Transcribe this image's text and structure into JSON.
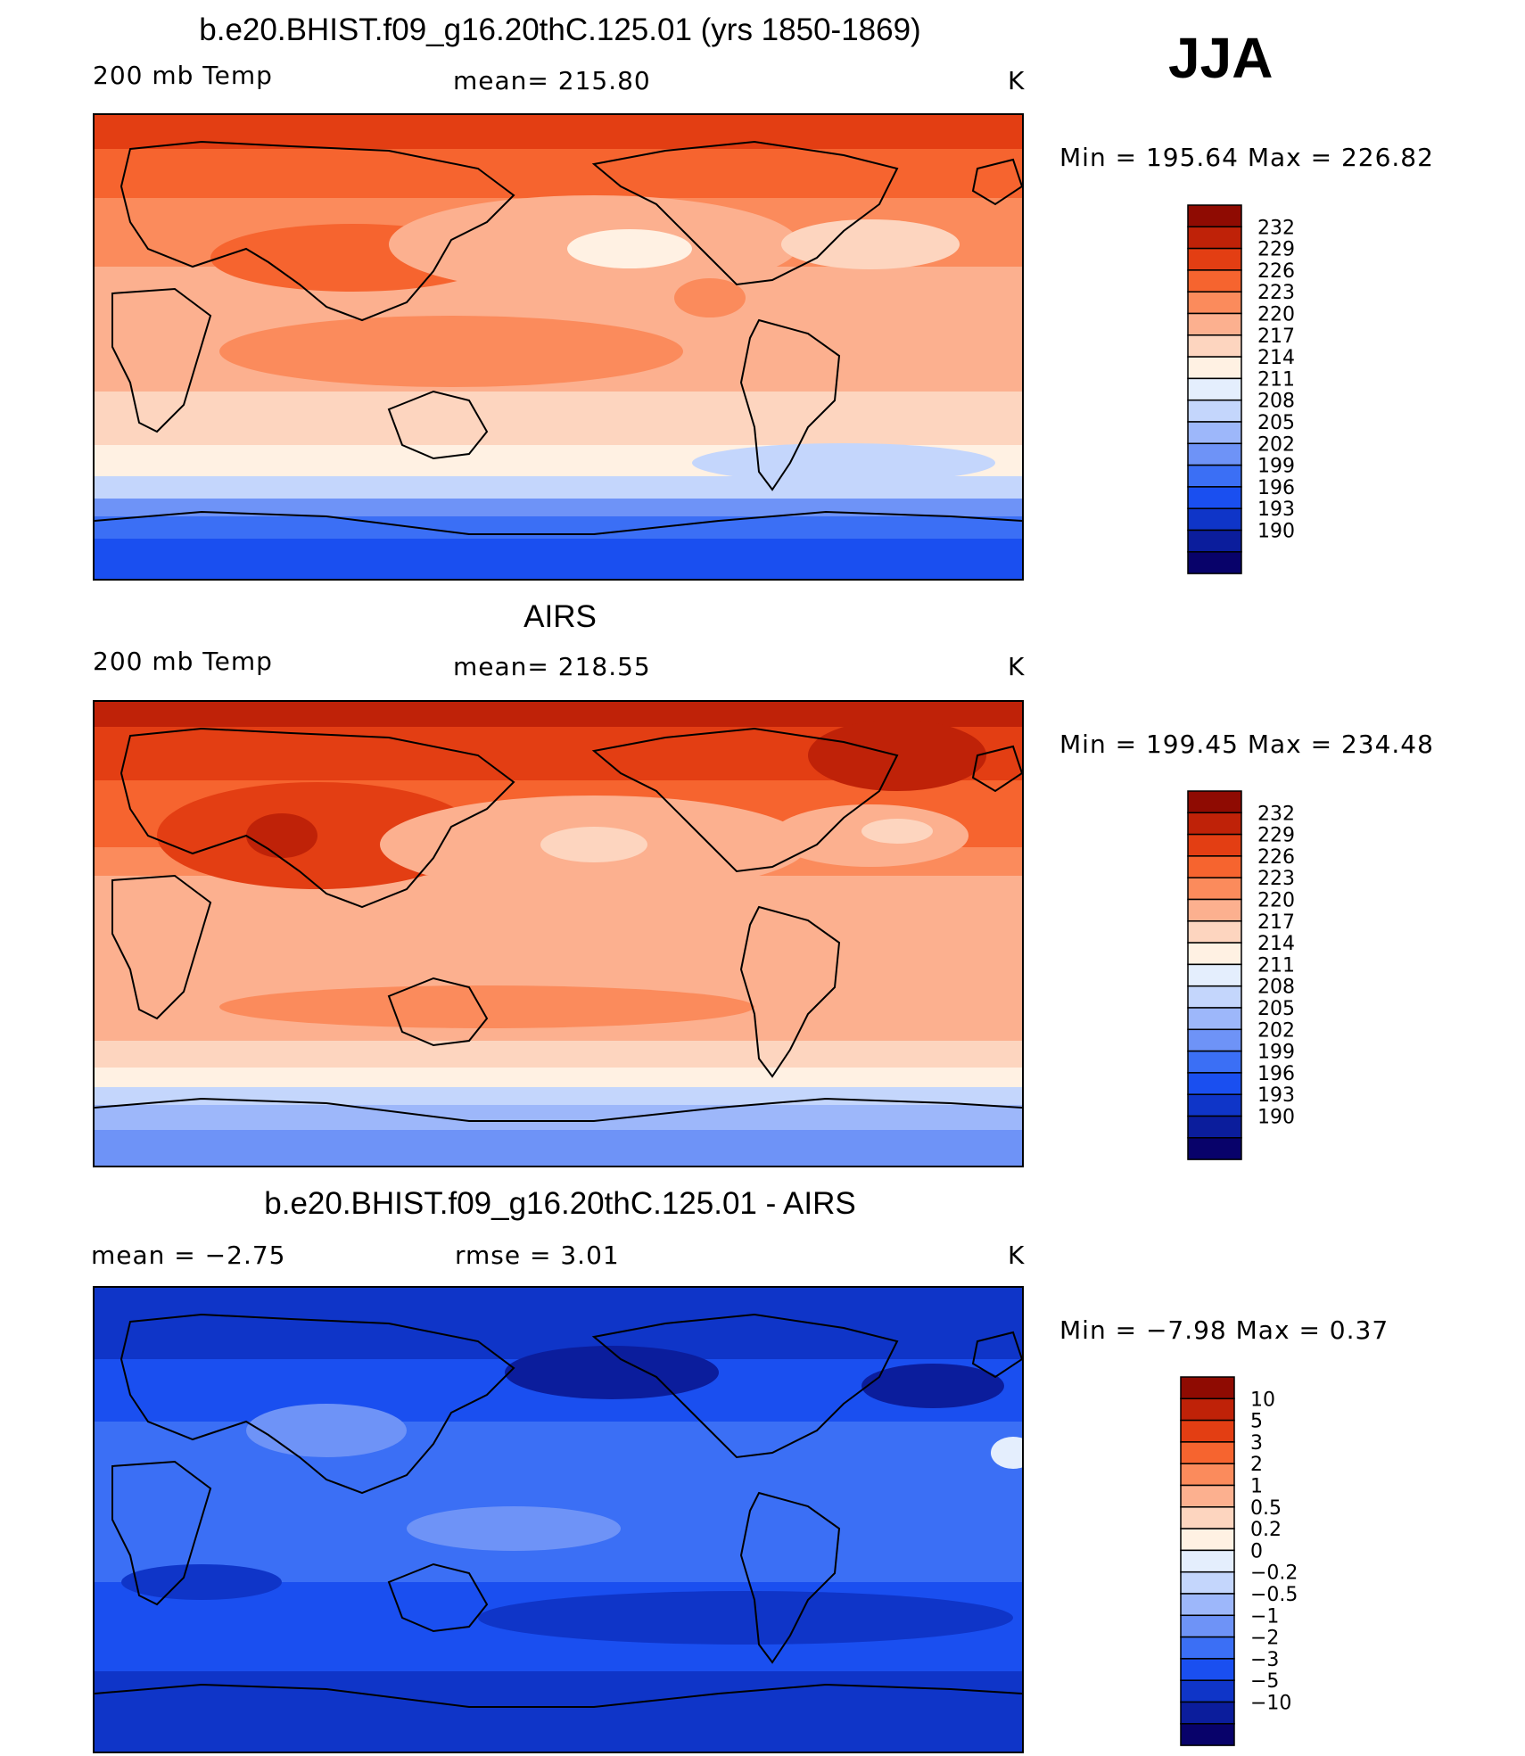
{
  "season": "JJA",
  "colors": {
    "abs_scale": [
      "#08026a",
      "#0b1d9c",
      "#0f35c8",
      "#1a4ff0",
      "#3b6ff5",
      "#6e93f7",
      "#9db7fa",
      "#c4d6fc",
      "#e4eefd",
      "#fff1e3",
      "#fdd5bf",
      "#fcb08f",
      "#fb8b5c",
      "#f6642f",
      "#e33e13",
      "#bf2208",
      "#8f0b02"
    ],
    "diff_scale": [
      "#08026a",
      "#0b1d9c",
      "#0f35c8",
      "#1a4ff0",
      "#3b6ff5",
      "#6e93f7",
      "#9db7fa",
      "#c4d6fc",
      "#e4eefd",
      "#fff1e3",
      "#fdd5bf",
      "#fcb08f",
      "#fb8b5c",
      "#f6642f",
      "#e33e13",
      "#bf2208",
      "#8f0b02"
    ]
  },
  "chart_data": [
    {
      "type": "heatmap",
      "title": "b.e20.BHIST.f09_g16.20thC.125.01 (yrs 1850-1869)",
      "left_label": "200 mb Temp",
      "center_label": "mean= 215.80",
      "right_label": "K",
      "minmax": "Min = 195.64 Max = 226.82",
      "stats": {
        "mean": 215.8,
        "min": 195.64,
        "max": 226.82
      },
      "colorbar_levels": [
        "232",
        "229",
        "226",
        "223",
        "220",
        "217",
        "214",
        "211",
        "208",
        "205",
        "202",
        "199",
        "196",
        "193",
        "190"
      ],
      "field": {
        "lat": [
          90,
          70,
          50,
          30,
          10,
          -10,
          -30,
          -50,
          -60,
          -70,
          -90
        ],
        "zonal_band_values": [
          225,
          224,
          221,
          220,
          217,
          217,
          215,
          211,
          205,
          198,
          196
        ]
      }
    },
    {
      "type": "heatmap",
      "title": "AIRS",
      "left_label": "200 mb Temp",
      "center_label": "mean= 218.55",
      "right_label": "K",
      "minmax": "Min = 199.45 Max = 234.48",
      "stats": {
        "mean": 218.55,
        "min": 199.45,
        "max": 234.48
      },
      "colorbar_levels": [
        "232",
        "229",
        "226",
        "223",
        "220",
        "217",
        "214",
        "211",
        "208",
        "205",
        "202",
        "199",
        "196",
        "193",
        "190"
      ],
      "field": {
        "lat": [
          90,
          70,
          50,
          30,
          10,
          -10,
          -30,
          -50,
          -60,
          -70,
          -90
        ],
        "zonal_band_values": [
          230,
          227,
          224,
          222,
          219,
          219,
          221,
          217,
          212,
          207,
          202
        ]
      }
    },
    {
      "type": "heatmap",
      "title": "b.e20.BHIST.f09_g16.20thC.125.01 - AIRS",
      "left_label": "mean =    −2.75",
      "center_label": "rmse =     3.01",
      "right_label": "K",
      "minmax": "Min =   −7.98 Max =     0.37",
      "stats": {
        "mean": -2.75,
        "rmse": 3.01,
        "min": -7.98,
        "max": 0.37
      },
      "colorbar_levels": [
        "10",
        "5",
        "3",
        "2",
        "1",
        "0.5",
        "0.2",
        "0",
        "−0.2",
        "−0.5",
        "−1",
        "−2",
        "−3",
        "−5",
        "−10"
      ],
      "field": {
        "lat": [
          90,
          70,
          50,
          30,
          10,
          -10,
          -30,
          -50,
          -60,
          -70,
          -90
        ],
        "zonal_band_values": [
          -4,
          -3,
          -2.5,
          -2,
          -1.5,
          -2,
          -3.5,
          -3,
          -4,
          -4,
          -4
        ]
      }
    }
  ]
}
